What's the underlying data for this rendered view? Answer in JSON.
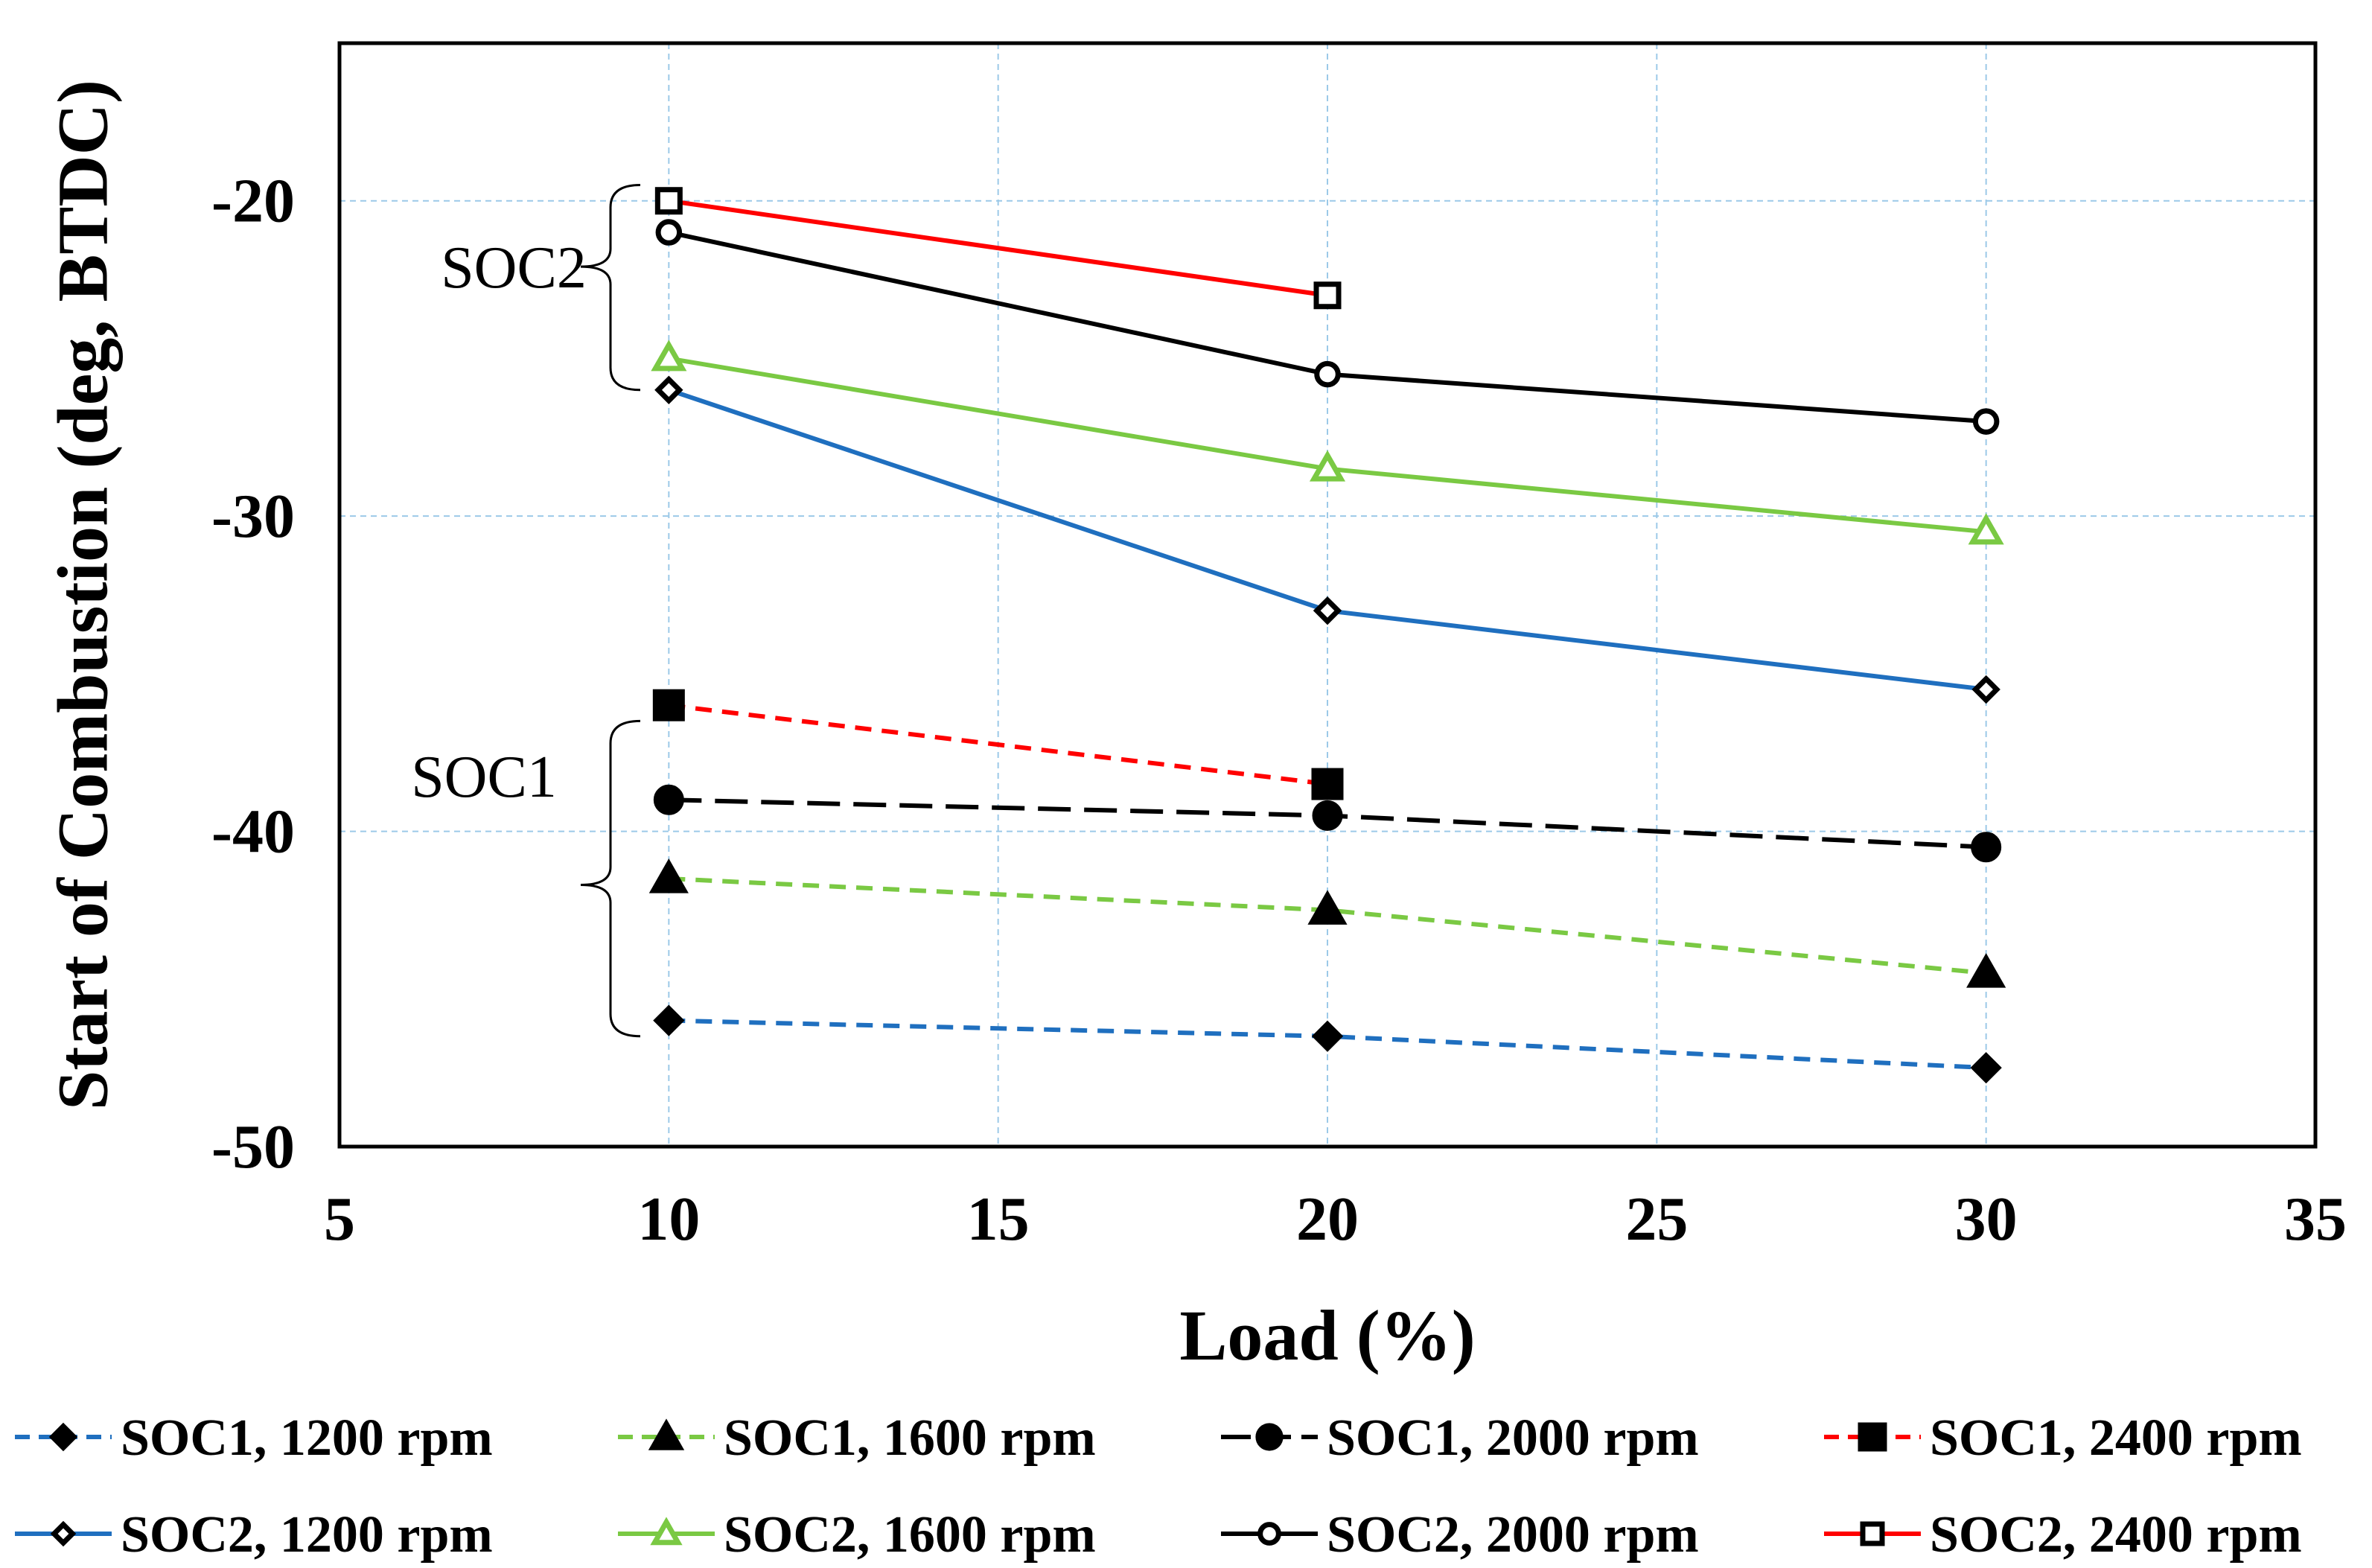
{
  "chart_data": {
    "type": "line",
    "title": "",
    "xlabel": "Load (%)",
    "ylabel": "Start of Combustion (deg, BTDC)",
    "xlim": [
      5,
      35
    ],
    "ylim": [
      -50,
      -15
    ],
    "xticks": [
      5,
      10,
      15,
      20,
      25,
      30,
      35
    ],
    "yticks": [
      -20,
      -30,
      -40,
      -50
    ],
    "grid": true,
    "legend_position": "bottom",
    "series": [
      {
        "name": "SOC1, 1200 rpm",
        "x": [
          10,
          20,
          30
        ],
        "y": [
          -46,
          -46.5,
          -47.5
        ],
        "color": "#1f6fbf",
        "dash": "dashed",
        "marker": "diamond",
        "filled": true
      },
      {
        "name": "SOC1, 1600 rpm",
        "x": [
          10,
          20,
          30
        ],
        "y": [
          -41.5,
          -42.5,
          -44.5
        ],
        "color": "#7ac943",
        "dash": "dashed",
        "marker": "triangle",
        "filled": true
      },
      {
        "name": "SOC1, 2000 rpm",
        "x": [
          10,
          20,
          30
        ],
        "y": [
          -39,
          -39.5,
          -40.5
        ],
        "color": "#000000",
        "dash": "longdash",
        "marker": "circle",
        "filled": true
      },
      {
        "name": "SOC1, 2400 rpm",
        "x": [
          10,
          20
        ],
        "y": [
          -36,
          -38.5
        ],
        "color": "#ff0000",
        "dash": "dashed",
        "marker": "square",
        "filled": true
      },
      {
        "name": "SOC2, 1200 rpm",
        "x": [
          10,
          20,
          30
        ],
        "y": [
          -26,
          -33,
          -35.5
        ],
        "color": "#1f6fbf",
        "dash": "solid",
        "marker": "diamond",
        "filled": false
      },
      {
        "name": "SOC2, 1600 rpm",
        "x": [
          10,
          20,
          30
        ],
        "y": [
          -25,
          -28.5,
          -30.5
        ],
        "color": "#7ac943",
        "dash": "solid",
        "marker": "triangle",
        "filled": false
      },
      {
        "name": "SOC2, 2000 rpm",
        "x": [
          10,
          20,
          30
        ],
        "y": [
          -21,
          -25.5,
          -27
        ],
        "color": "#000000",
        "dash": "solid",
        "marker": "circle",
        "filled": false
      },
      {
        "name": "SOC2, 2400 rpm",
        "x": [
          10,
          20
        ],
        "y": [
          -20,
          -23
        ],
        "color": "#ff0000",
        "dash": "solid",
        "marker": "square",
        "filled": false
      }
    ],
    "annotations": [
      {
        "text": "SOC2",
        "y_range": [
          -19.5,
          -26
        ]
      },
      {
        "text": "SOC1",
        "y_range": [
          -36.5,
          -46.5
        ]
      }
    ]
  }
}
